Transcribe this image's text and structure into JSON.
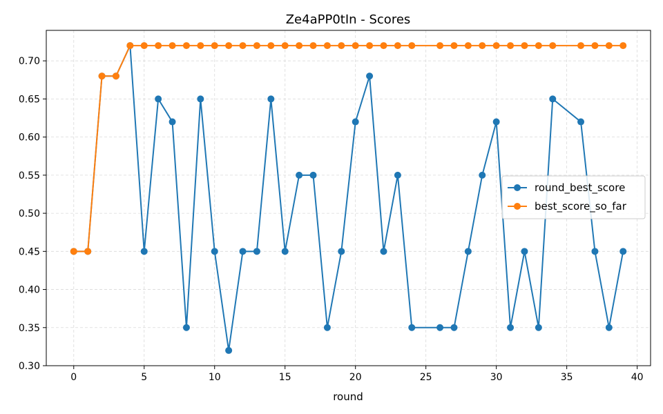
{
  "chart_data": {
    "type": "line",
    "title": "Ze4aPP0tIn - Scores",
    "xlabel": "round",
    "ylabel": "",
    "xlim": [
      -1.95,
      40.95
    ],
    "ylim": [
      0.3,
      0.74
    ],
    "xticks": [
      0,
      5,
      10,
      15,
      20,
      25,
      30,
      35,
      40
    ],
    "yticks": [
      0.3,
      0.35,
      0.4,
      0.45,
      0.5,
      0.55,
      0.6,
      0.65,
      0.7
    ],
    "grid": true,
    "legend_position": "center-right",
    "series": [
      {
        "name": "round_best_score",
        "color": "#1f77b4",
        "x": [
          0,
          1,
          2,
          3,
          4,
          5,
          6,
          7,
          8,
          9,
          10,
          11,
          12,
          13,
          14,
          15,
          16,
          17,
          18,
          19,
          20,
          21,
          22,
          23,
          24,
          26,
          27,
          28,
          29,
          30,
          31,
          32,
          33,
          34,
          36,
          37,
          38,
          39
        ],
        "values": [
          0.45,
          0.45,
          0.68,
          0.68,
          0.72,
          0.45,
          0.65,
          0.62,
          0.35,
          0.65,
          0.45,
          0.32,
          0.45,
          0.45,
          0.65,
          0.45,
          0.55,
          0.55,
          0.35,
          0.45,
          0.62,
          0.68,
          0.45,
          0.55,
          0.35,
          0.35,
          0.35,
          0.45,
          0.55,
          0.62,
          0.35,
          0.45,
          0.35,
          0.65,
          0.62,
          0.45,
          0.35,
          0.45
        ]
      },
      {
        "name": "best_score_so_far",
        "color": "#ff7f0e",
        "x": [
          0,
          1,
          2,
          3,
          4,
          5,
          6,
          7,
          8,
          9,
          10,
          11,
          12,
          13,
          14,
          15,
          16,
          17,
          18,
          19,
          20,
          21,
          22,
          23,
          24,
          26,
          27,
          28,
          29,
          30,
          31,
          32,
          33,
          34,
          36,
          37,
          38,
          39
        ],
        "values": [
          0.45,
          0.45,
          0.68,
          0.68,
          0.72,
          0.72,
          0.72,
          0.72,
          0.72,
          0.72,
          0.72,
          0.72,
          0.72,
          0.72,
          0.72,
          0.72,
          0.72,
          0.72,
          0.72,
          0.72,
          0.72,
          0.72,
          0.72,
          0.72,
          0.72,
          0.72,
          0.72,
          0.72,
          0.72,
          0.72,
          0.72,
          0.72,
          0.72,
          0.72,
          0.72,
          0.72,
          0.72,
          0.72
        ]
      }
    ]
  }
}
